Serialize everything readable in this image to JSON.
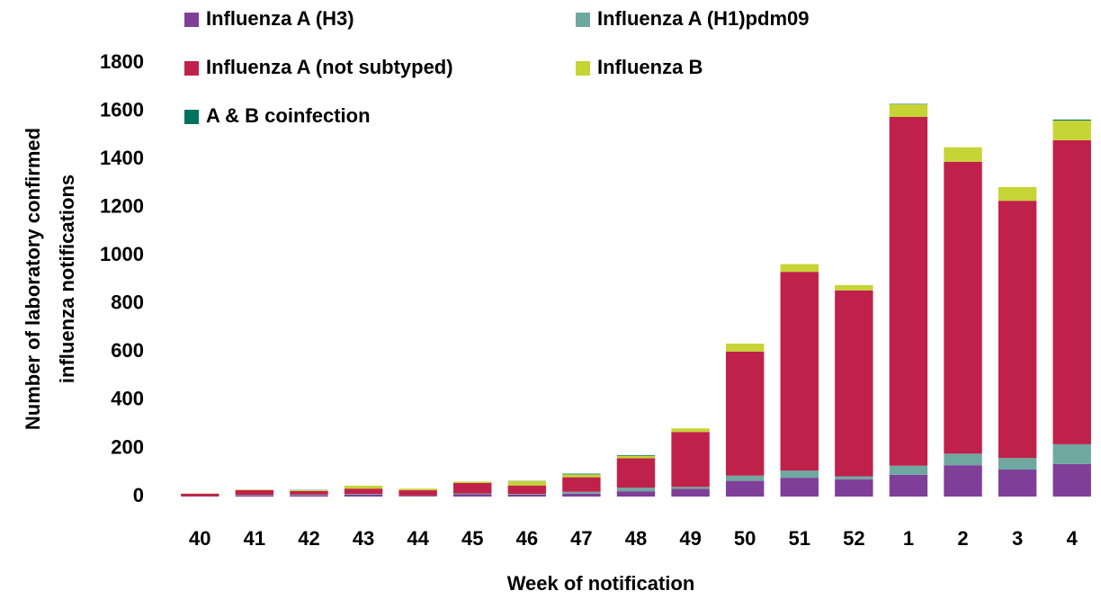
{
  "chart_data": {
    "type": "stacked_bar",
    "x_label": "Week of notification",
    "y_label": [
      "Number of laboratory confirmed",
      "influenza notifications"
    ],
    "categories": [
      "40",
      "41",
      "42",
      "43",
      "44",
      "45",
      "46",
      "47",
      "48",
      "49",
      "50",
      "51",
      "52",
      "1",
      "2",
      "3",
      "4"
    ],
    "series": [
      {
        "name": "Influenza A (H3)",
        "color": "#7f3f98",
        "values": [
          2,
          5,
          5,
          8,
          3,
          10,
          8,
          12,
          22,
          32,
          65,
          78,
          72,
          90,
          130,
          112,
          135
        ]
      },
      {
        "name": "Influenza A (H1)pdm09",
        "color": "#6fa8a0",
        "values": [
          0,
          2,
          3,
          3,
          1,
          3,
          3,
          8,
          15,
          8,
          22,
          30,
          12,
          38,
          48,
          48,
          82
        ]
      },
      {
        "name": "Influenza A (not subtyped)",
        "color": "#c0214a",
        "values": [
          10,
          20,
          15,
          22,
          22,
          43,
          35,
          60,
          122,
          228,
          515,
          825,
          772,
          1448,
          1212,
          1068,
          1262
        ]
      },
      {
        "name": "Influenza B",
        "color": "#c6d435",
        "values": [
          1,
          2,
          4,
          12,
          7,
          6,
          18,
          12,
          10,
          15,
          33,
          32,
          22,
          52,
          60,
          57,
          82
        ]
      },
      {
        "name": "A & B coinfection",
        "color": "#00735d",
        "values": [
          0,
          0,
          1,
          0,
          0,
          0,
          1,
          3,
          3,
          0,
          0,
          0,
          0,
          2,
          0,
          0,
          4
        ]
      }
    ],
    "ylim": [
      0,
      1800
    ],
    "yticks": [
      0,
      200,
      400,
      600,
      800,
      1000,
      1200,
      1400,
      1600,
      1800
    ],
    "grid": false
  }
}
